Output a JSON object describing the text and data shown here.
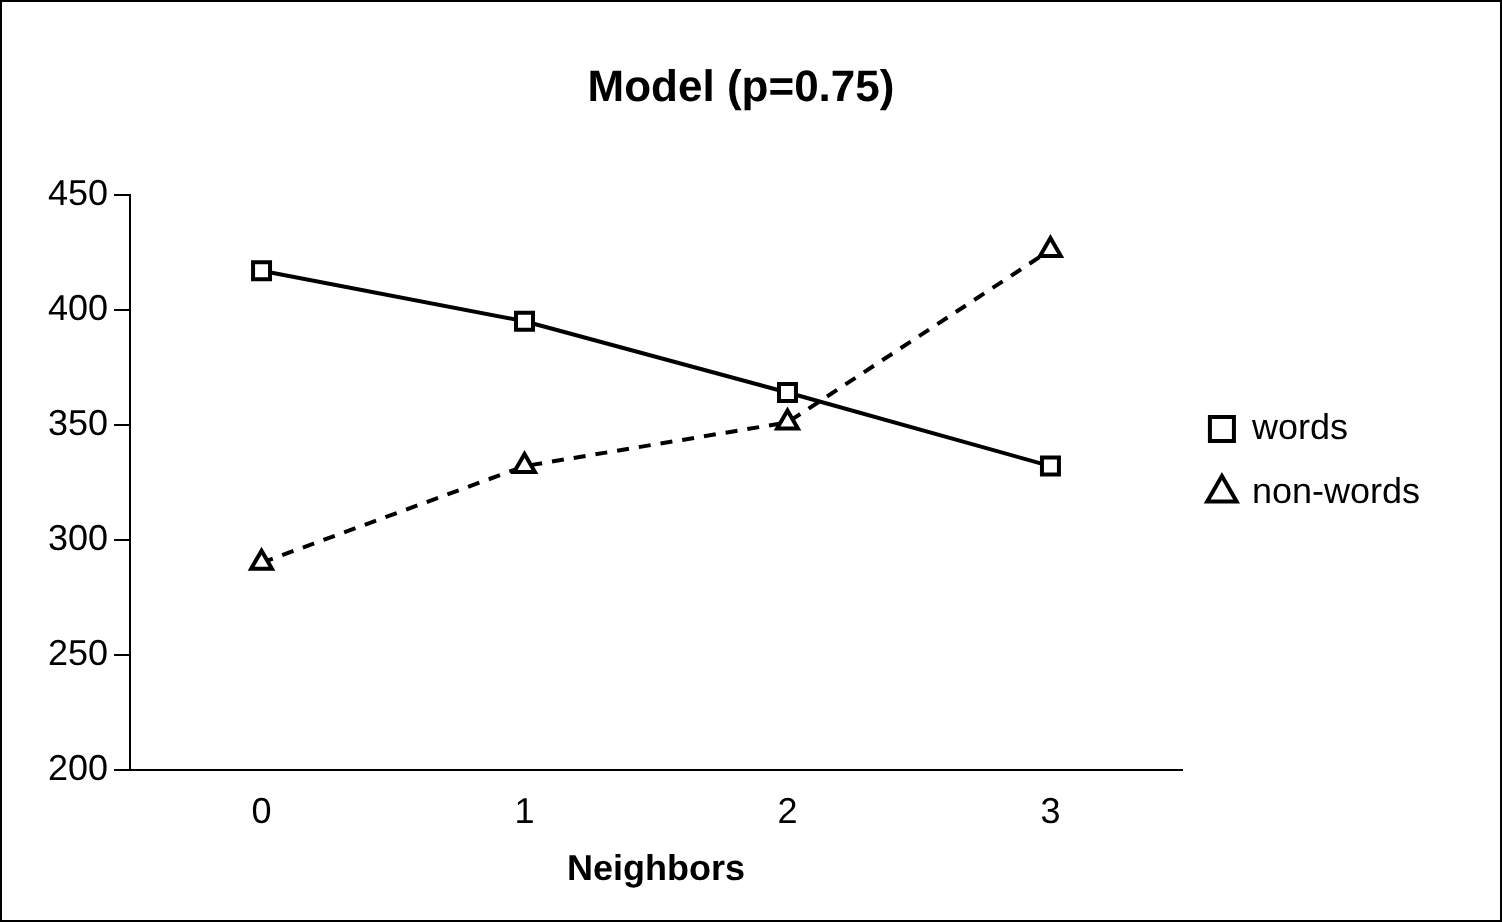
{
  "chart_data": {
    "type": "line",
    "title": "Model (p=0.75)",
    "xlabel": "Neighbors",
    "categories": [
      "0",
      "1",
      "2",
      "3"
    ],
    "series": [
      {
        "name": "words",
        "color": "#000000",
        "values": [
          417,
          395,
          364,
          332
        ],
        "marker": "square",
        "line_style": "solid"
      },
      {
        "name": "non-words",
        "color": "#000000",
        "values": [
          290,
          332,
          351,
          426
        ],
        "marker": "triangle",
        "line_style": "dashed"
      }
    ],
    "ylim": [
      200,
      450
    ],
    "yticks": [
      200,
      250,
      300,
      350,
      400,
      450
    ],
    "grid": false,
    "legend": "right"
  }
}
